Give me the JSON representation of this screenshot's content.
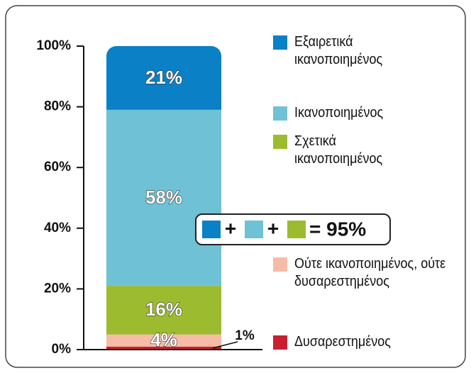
{
  "chart_data": {
    "type": "stacked-bar",
    "series": [
      {
        "name": "Δυσαρεστημένος",
        "color": "#c8202e",
        "values": [
          1
        ],
        "value_labels": [
          "1%"
        ]
      },
      {
        "name": "Ούτε ικανοποιημένος, ούτε δυσαρεστημένος",
        "color": "#f6bca6",
        "values": [
          4
        ],
        "value_labels": [
          "4%"
        ]
      },
      {
        "name": "Σχετικά ικανοποιημένος",
        "color": "#9dbb2f",
        "values": [
          16
        ],
        "value_labels": [
          "16%"
        ]
      },
      {
        "name": "Ικανοποιημένος",
        "color": "#6fc1d5",
        "values": [
          58
        ],
        "value_labels": [
          "58%"
        ]
      },
      {
        "name": "Εξαιρετικά ικανοποιημένος",
        "color": "#0a80c6",
        "values": [
          21
        ],
        "value_labels": [
          "21%"
        ]
      }
    ],
    "ylim": [
      0,
      100
    ],
    "yticks": [
      {
        "value": 0,
        "label": "0%"
      },
      {
        "value": 20,
        "label": "20%"
      },
      {
        "value": 40,
        "label": "40%"
      },
      {
        "value": 60,
        "label": "60%"
      },
      {
        "value": 80,
        "label": "80%"
      },
      {
        "value": 100,
        "label": "100%"
      }
    ],
    "annotation": {
      "operator": "+",
      "result": "= 95%"
    }
  }
}
